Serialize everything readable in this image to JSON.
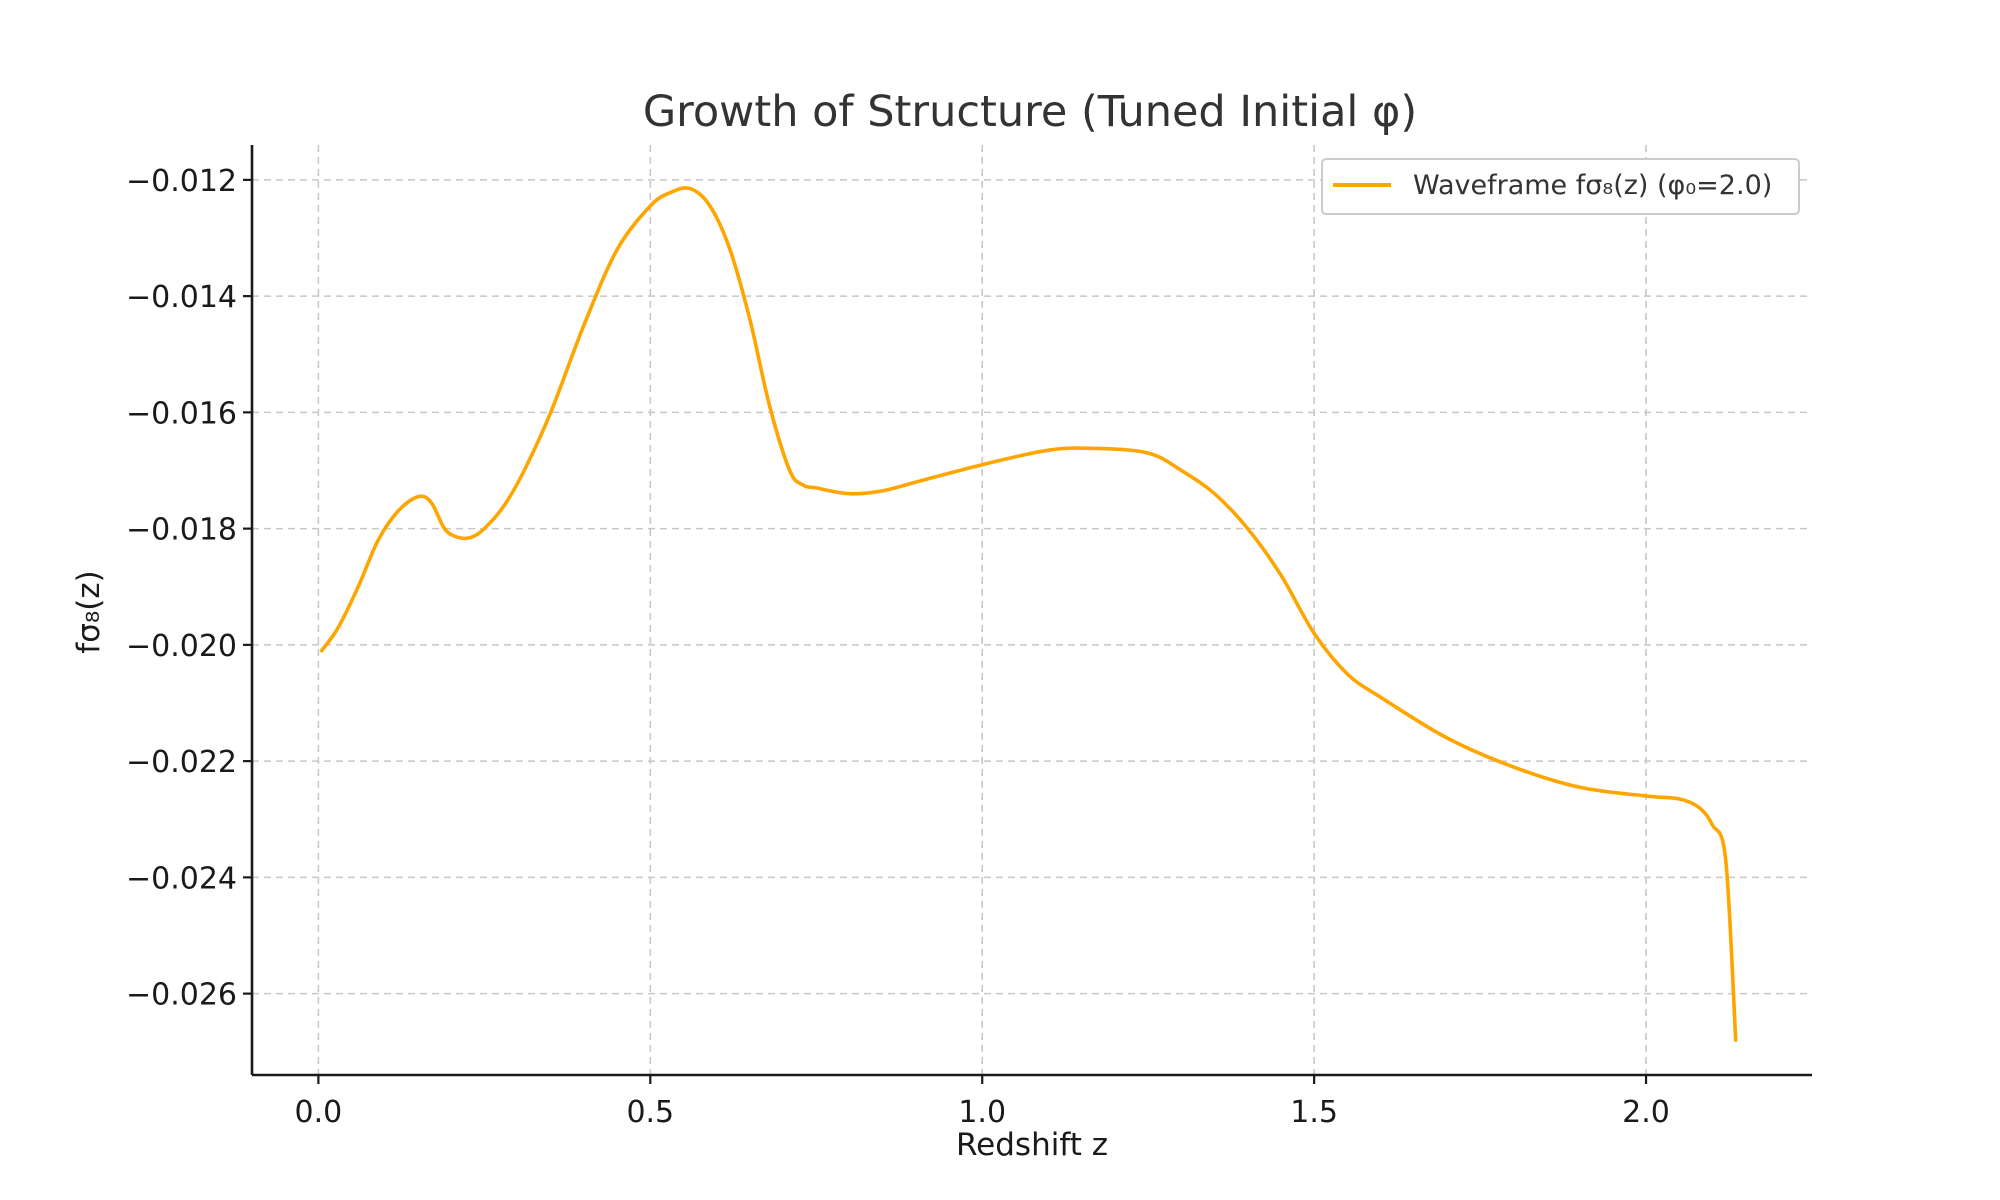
{
  "chart_data": {
    "type": "line",
    "title": "Growth of Structure (Tuned Initial φ)",
    "xlabel": "Redshift z",
    "ylabel": "fσ₈(z)",
    "xlim": [
      -0.1,
      2.25
    ],
    "ylim": [
      -0.0274,
      -0.0114
    ],
    "xticks": [
      0.0,
      0.5,
      1.0,
      1.5,
      2.0
    ],
    "xtick_labels": [
      "0.0",
      "0.5",
      "1.0",
      "1.5",
      "2.0"
    ],
    "yticks": [
      -0.012,
      -0.014,
      -0.016,
      -0.018,
      -0.02,
      -0.022,
      -0.024,
      -0.026
    ],
    "ytick_labels": [
      "−0.012",
      "−0.014",
      "−0.016",
      "−0.018",
      "−0.020",
      "−0.022",
      "−0.024",
      "−0.026"
    ],
    "grid": true,
    "legend_position": "top-right",
    "series": [
      {
        "name": "Waveframe fσ₈(z) (φ₀=2.0)",
        "color": "#FFA500",
        "x": [
          0.005,
          0.03,
          0.06,
          0.09,
          0.12,
          0.15,
          0.17,
          0.19,
          0.21,
          0.23,
          0.25,
          0.28,
          0.31,
          0.35,
          0.4,
          0.45,
          0.5,
          0.53,
          0.56,
          0.59,
          0.62,
          0.65,
          0.68,
          0.71,
          0.73,
          0.75,
          0.8,
          0.85,
          0.9,
          1.0,
          1.1,
          1.17,
          1.25,
          1.3,
          1.35,
          1.4,
          1.45,
          1.5,
          1.55,
          1.6,
          1.7,
          1.8,
          1.9,
          2.0,
          2.05,
          2.08,
          2.1,
          2.12,
          2.135
        ],
        "y": [
          -0.0201,
          -0.0197,
          -0.019,
          -0.0182,
          -0.0177,
          -0.01745,
          -0.01755,
          -0.018,
          -0.01815,
          -0.01815,
          -0.018,
          -0.0176,
          -0.017,
          -0.016,
          -0.0145,
          -0.0132,
          -0.01245,
          -0.01222,
          -0.01215,
          -0.01245,
          -0.0132,
          -0.0144,
          -0.0159,
          -0.017,
          -0.01725,
          -0.0173,
          -0.0174,
          -0.01735,
          -0.0172,
          -0.0169,
          -0.01665,
          -0.01662,
          -0.0167,
          -0.017,
          -0.0174,
          -0.018,
          -0.0188,
          -0.0198,
          -0.0205,
          -0.0209,
          -0.0216,
          -0.0221,
          -0.02245,
          -0.0226,
          -0.02265,
          -0.0228,
          -0.0231,
          -0.0237,
          -0.0268
        ]
      }
    ]
  }
}
